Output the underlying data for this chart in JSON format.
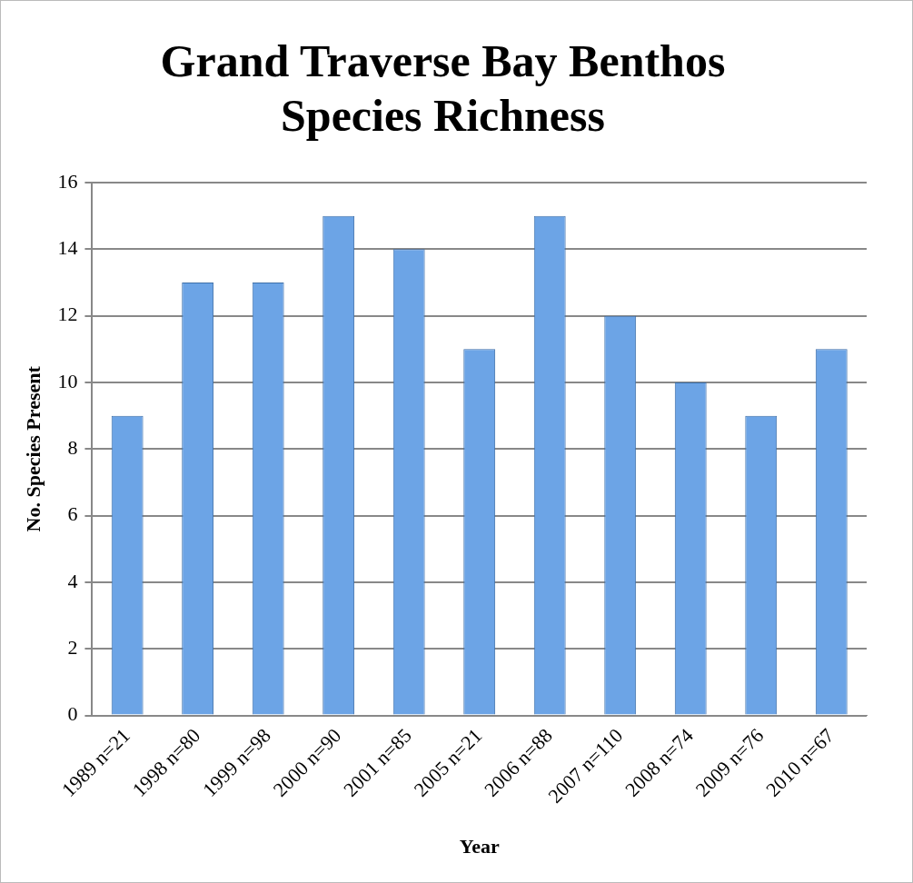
{
  "chart_data": {
    "type": "bar",
    "title": [
      "Grand Traverse Bay Benthos",
      "Species Richness"
    ],
    "xlabel": "Year",
    "ylabel": "No. Species Present",
    "categories": [
      "1989 n=21",
      "1998 n=80",
      "1999 n=98",
      "2000 n=90",
      "2001 n=85",
      "2005 n=21",
      "2006 n=88",
      "2007 n=110",
      "2008 n=74",
      "2009 n=76",
      "2010 n=67"
    ],
    "values": [
      9,
      13,
      13,
      15,
      14,
      11,
      15,
      12,
      10,
      9,
      11
    ],
    "color": "#6ca4e6",
    "ylim": [
      0,
      16
    ],
    "yticks": [
      0,
      2,
      4,
      6,
      8,
      10,
      12,
      14,
      16
    ],
    "grid": "y",
    "legend": false
  }
}
